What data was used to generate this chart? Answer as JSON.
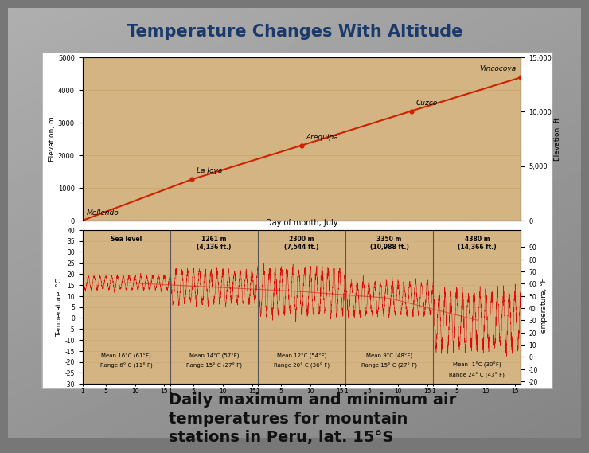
{
  "title": "Temperature Changes With Altitude",
  "title_color": "#1a3a6b",
  "title_fontsize": 15,
  "chart_bg": "#d4b483",
  "chart_border": "#aaaaaa",
  "subtitle_text": "Daily maximum and minimum air\ntemperatures for mountain\nstations in Peru, lat. 15°S",
  "subtitle_fontsize": 14,
  "subtitle_color": "#111111",
  "elevation_stations": [
    {
      "name": "Mellendo",
      "elevation_m": 0
    },
    {
      "name": "La Joya",
      "elevation_m": 1261
    },
    {
      "name": "Arequipa",
      "elevation_m": 2300
    },
    {
      "name": "Cuzco",
      "elevation_m": 3350
    },
    {
      "name": "Vincocoya",
      "elevation_m": 4380
    }
  ],
  "elevation_line_color": "#cc2200",
  "elev_ylabel_left": "Elevation, m",
  "elev_ylabel_right": "Elevation, ft",
  "temp_xlabel": "Day of month, July",
  "temp_ylabel_left": "Temperature, °C",
  "temp_ylabel_right": "Temperature, °F",
  "temp_ylim_C": [
    -30,
    40
  ],
  "temp_line_color": "#dd0000",
  "temp_sections": [
    {
      "label": "Sea level",
      "mean_C": 16,
      "mean_F": 61,
      "range_C": 6,
      "range_F": 11,
      "amp": 3
    },
    {
      "label": "1261 m\n(4,136 ft.)",
      "mean_C": 14,
      "mean_F": 57,
      "range_C": 15,
      "range_F": 27,
      "amp": 7
    },
    {
      "label": "2300 m\n(7,544 ft.)",
      "mean_C": 12,
      "mean_F": 54,
      "range_C": 20,
      "range_F": 36,
      "amp": 10
    },
    {
      "label": "3350 m\n(10,988 ft.)",
      "mean_C": 9,
      "mean_F": 48,
      "range_C": 15,
      "range_F": 27,
      "amp": 7
    },
    {
      "label": "4380 m\n(14,366 ft.)",
      "mean_C": -1,
      "mean_F": 30,
      "range_C": 24,
      "range_F": 43,
      "amp": 12
    }
  ],
  "grid_color": "#c8a86a",
  "divider_color": "#555555"
}
